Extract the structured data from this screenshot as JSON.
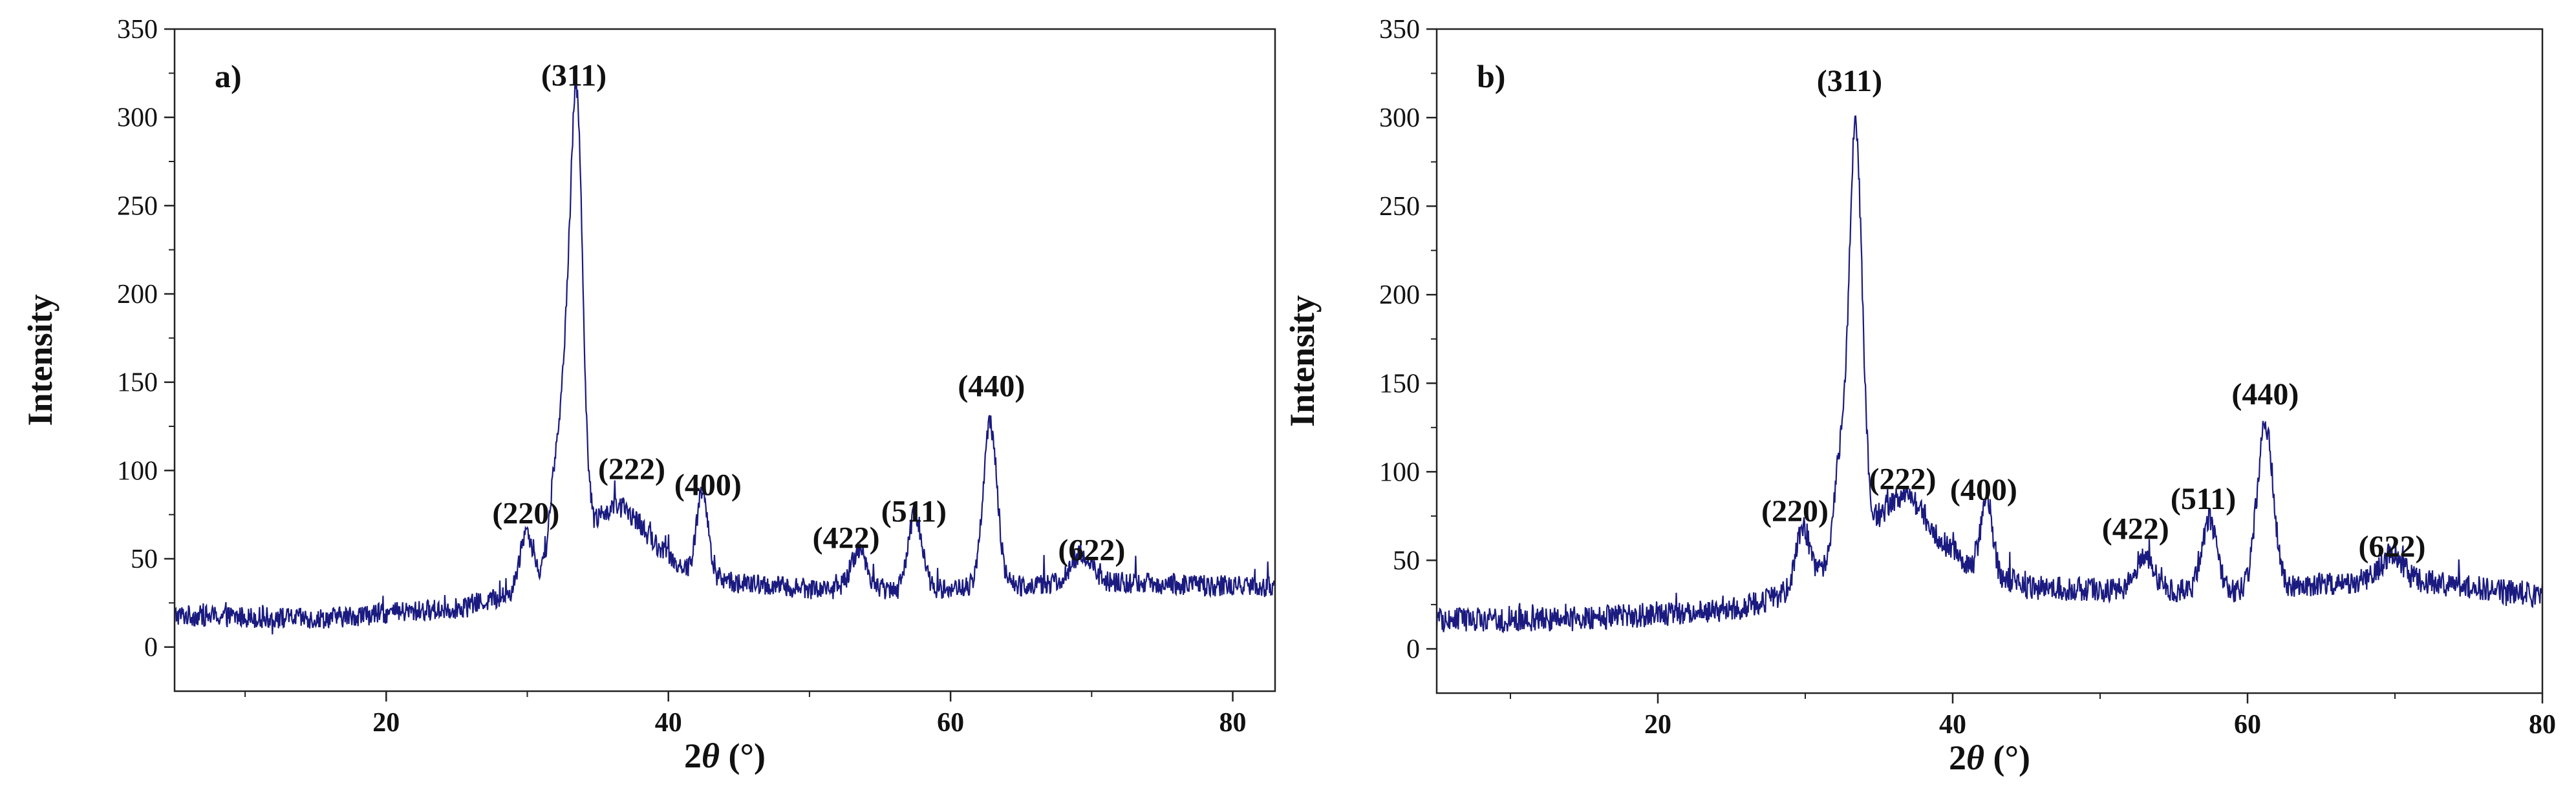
{
  "chart_data": [
    {
      "type": "line",
      "panel_label": "a)",
      "xlabel_prefix": "2",
      "xlabel_theta": "θ",
      "xlabel_unit": " (°)",
      "ylabel": "Intensity",
      "xlim": [
        5,
        83
      ],
      "ylim": [
        -25,
        350
      ],
      "x_ticks": [
        20,
        40,
        60,
        80
      ],
      "y_ticks": [
        0,
        50,
        100,
        150,
        200,
        250,
        300,
        350
      ],
      "line_color": "#1a1a80",
      "series": [
        {
          "baseline": [
            [
              5,
              18
            ],
            [
              15,
              16
            ],
            [
              25,
              22
            ],
            [
              29,
              30
            ],
            [
              31,
              42
            ],
            [
              34,
              70
            ],
            [
              38,
              66
            ],
            [
              41,
              45
            ],
            [
              45,
              36
            ],
            [
              50,
              33
            ],
            [
              60,
              33
            ],
            [
              70,
              37
            ],
            [
              83,
              34
            ]
          ],
          "noise": 6,
          "peaks": [
            [
              29.9,
              30,
              0.45
            ],
            [
              31.9,
              40,
              0.35
            ],
            [
              32.7,
              85,
              0.4
            ],
            [
              33.5,
              240,
              0.42
            ],
            [
              36.5,
              12,
              1.0
            ],
            [
              42.4,
              48,
              0.38
            ],
            [
              53.5,
              22,
              0.55
            ],
            [
              57.5,
              42,
              0.5
            ],
            [
              62.8,
              92,
              0.5
            ],
            [
              69.3,
              16,
              0.7
            ]
          ]
        }
      ],
      "annotations": [
        {
          "text": "(220)",
          "x": 29.9,
          "y": 70
        },
        {
          "text": "(311)",
          "x": 33.3,
          "y": 318
        },
        {
          "text": "(222)",
          "x": 37.4,
          "y": 95
        },
        {
          "text": "(400)",
          "x": 42.8,
          "y": 86
        },
        {
          "text": "(422)",
          "x": 52.6,
          "y": 56
        },
        {
          "text": "(511)",
          "x": 57.4,
          "y": 71
        },
        {
          "text": "(440)",
          "x": 62.9,
          "y": 142
        },
        {
          "text": "(622)",
          "x": 70.0,
          "y": 49
        }
      ]
    },
    {
      "type": "line",
      "panel_label": "b)",
      "xlabel_prefix": "2",
      "xlabel_theta": "θ",
      "xlabel_unit": " (°)",
      "ylabel": "Intensity",
      "xlim": [
        5,
        80
      ],
      "ylim": [
        -25,
        350
      ],
      "x_ticks": [
        20,
        40,
        60,
        80
      ],
      "y_ticks": [
        0,
        50,
        100,
        150,
        200,
        250,
        300,
        350
      ],
      "line_color": "#1a1a80",
      "series": [
        {
          "baseline": [
            [
              5,
              16
            ],
            [
              15,
              17
            ],
            [
              25,
              22
            ],
            [
              29,
              32
            ],
            [
              31,
              45
            ],
            [
              34,
              72
            ],
            [
              38,
              70
            ],
            [
              41,
              48
            ],
            [
              45,
              35
            ],
            [
              50,
              33
            ],
            [
              60,
              33
            ],
            [
              70,
              40
            ],
            [
              80,
              30
            ]
          ],
          "noise": 7,
          "peaks": [
            [
              29.8,
              32,
              0.45
            ],
            [
              32.3,
              45,
              0.35
            ],
            [
              33.4,
              228,
              0.45
            ],
            [
              36.7,
              16,
              1.0
            ],
            [
              42.3,
              43,
              0.38
            ],
            [
              53.0,
              20,
              0.6
            ],
            [
              57.4,
              40,
              0.5
            ],
            [
              61.2,
              92,
              0.55
            ],
            [
              69.8,
              14,
              0.7
            ]
          ]
        }
      ],
      "annotations": [
        {
          "text": "(220)",
          "x": 29.3,
          "y": 72
        },
        {
          "text": "(311)",
          "x": 33.0,
          "y": 315
        },
        {
          "text": "(222)",
          "x": 36.6,
          "y": 90
        },
        {
          "text": "(400)",
          "x": 42.1,
          "y": 84
        },
        {
          "text": "(422)",
          "x": 52.4,
          "y": 62
        },
        {
          "text": "(511)",
          "x": 57.0,
          "y": 79
        },
        {
          "text": "(440)",
          "x": 61.2,
          "y": 138
        },
        {
          "text": "(622)",
          "x": 69.8,
          "y": 52
        }
      ]
    }
  ]
}
